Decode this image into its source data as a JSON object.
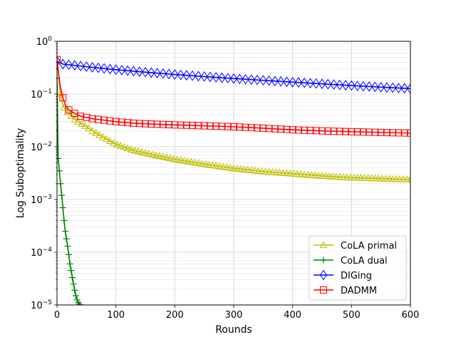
{
  "chart_data": {
    "type": "line",
    "title": "",
    "xlabel": "Rounds",
    "ylabel": "Log Suboptimality",
    "xlim": [
      0,
      600
    ],
    "ylim": [
      1e-05,
      1
    ],
    "yscale": "log",
    "grid": true,
    "legend_position": "lower-right",
    "x_ticks": [
      "0",
      "100",
      "200",
      "300",
      "400",
      "500",
      "600"
    ],
    "y_ticks": [
      {
        "value": 1,
        "mant": "10",
        "exp": "0"
      },
      {
        "value": 0.1,
        "mant": "10",
        "exp": "−1"
      },
      {
        "value": 0.01,
        "mant": "10",
        "exp": "−2"
      },
      {
        "value": 0.001,
        "mant": "10",
        "exp": "−3"
      },
      {
        "value": 0.0001,
        "mant": "10",
        "exp": "−4"
      },
      {
        "value": 1e-05,
        "mant": "10",
        "exp": "−5"
      }
    ],
    "series": [
      {
        "name": "CoLA primal",
        "color": "#bfbf00",
        "marker": "triangle",
        "x": [
          0,
          5,
          10,
          15,
          20,
          30,
          40,
          50,
          60,
          80,
          100,
          130,
          160,
          200,
          250,
          300,
          350,
          400,
          450,
          500,
          550,
          600
        ],
        "y": [
          0.45,
          0.12,
          0.06,
          0.05,
          0.043,
          0.033,
          0.028,
          0.024,
          0.02,
          0.0148,
          0.0112,
          0.0086,
          0.0072,
          0.0058,
          0.0047,
          0.0039,
          0.0034,
          0.0031,
          0.0028,
          0.0026,
          0.0025,
          0.0024
        ]
      },
      {
        "name": "CoLA dual",
        "color": "#008000",
        "marker": "plus",
        "x": [
          0,
          2,
          4,
          6,
          8,
          10,
          12,
          14,
          16,
          18,
          20,
          22,
          24,
          26,
          28,
          30,
          32,
          34,
          36,
          38,
          40
        ],
        "y": [
          0.2,
          0.006,
          0.0035,
          0.002,
          0.0012,
          0.0007,
          0.0004,
          0.00025,
          0.00018,
          0.00013,
          9e-05,
          6e-05,
          4.5e-05,
          3.3e-05,
          2.5e-05,
          1.9e-05,
          1.5e-05,
          1.25e-05,
          1.1e-05,
          1.02e-05,
          1e-05
        ]
      },
      {
        "name": "DIGing",
        "color": "#0000ff",
        "marker": "diamond",
        "x": [
          0,
          10,
          50,
          100,
          150,
          200,
          250,
          300,
          350,
          400,
          450,
          500,
          550,
          600
        ],
        "y": [
          0.42,
          0.37,
          0.33,
          0.29,
          0.26,
          0.235,
          0.215,
          0.197,
          0.182,
          0.168,
          0.156,
          0.145,
          0.135,
          0.127
        ]
      },
      {
        "name": "DADMM",
        "color": "#ff0000",
        "marker": "square",
        "x": [
          0,
          5,
          10,
          15,
          20,
          30,
          40,
          50,
          60,
          80,
          100,
          130,
          160,
          200,
          250,
          300,
          350,
          400,
          450,
          500,
          550,
          600
        ],
        "y": [
          0.45,
          0.15,
          0.085,
          0.06,
          0.05,
          0.043,
          0.038,
          0.036,
          0.034,
          0.032,
          0.03,
          0.028,
          0.027,
          0.026,
          0.025,
          0.024,
          0.0225,
          0.021,
          0.02,
          0.0193,
          0.0187,
          0.0182
        ]
      }
    ]
  }
}
